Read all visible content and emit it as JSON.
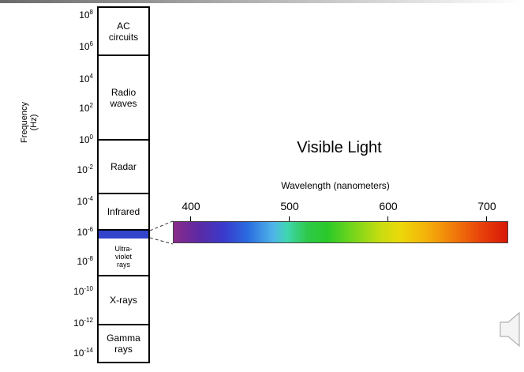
{
  "frequency_axis": {
    "label_line1": "Frequency",
    "label_line2": "(Hz)",
    "ticks": [
      {
        "base": "10",
        "exp": "8"
      },
      {
        "base": "10",
        "exp": "6"
      },
      {
        "base": "10",
        "exp": "4"
      },
      {
        "base": "10",
        "exp": "2"
      },
      {
        "base": "10",
        "exp": "0"
      },
      {
        "base": "10",
        "exp": "-2"
      },
      {
        "base": "10",
        "exp": "-4"
      },
      {
        "base": "10",
        "exp": "-6"
      },
      {
        "base": "10",
        "exp": "-8"
      },
      {
        "base": "10",
        "exp": "-10"
      },
      {
        "base": "10",
        "exp": "-12"
      },
      {
        "base": "10",
        "exp": "-14"
      }
    ]
  },
  "bands": [
    {
      "line1": "AC",
      "line2": "circuits",
      "line3": ""
    },
    {
      "line1": "Radio",
      "line2": "waves",
      "line3": ""
    },
    {
      "line1": "Radar",
      "line2": "",
      "line3": ""
    },
    {
      "line1": "Infrared",
      "line2": "",
      "line3": ""
    },
    {
      "line1": "Ultra-",
      "line2": "violet",
      "line3": "rays"
    },
    {
      "line1": "X-rays",
      "line2": "",
      "line3": ""
    },
    {
      "line1": "Gamma",
      "line2": "rays",
      "line3": ""
    }
  ],
  "visible": {
    "title": "Visible Light",
    "axis_label": "Wavelength (nanometers)",
    "ticks": [
      "400",
      "500",
      "600",
      "700"
    ]
  },
  "colors": {
    "visible_band": "#3344cc",
    "violet": "#8a2a8a",
    "red": "#d81808"
  },
  "icons": {
    "speaker": "speaker-icon"
  }
}
